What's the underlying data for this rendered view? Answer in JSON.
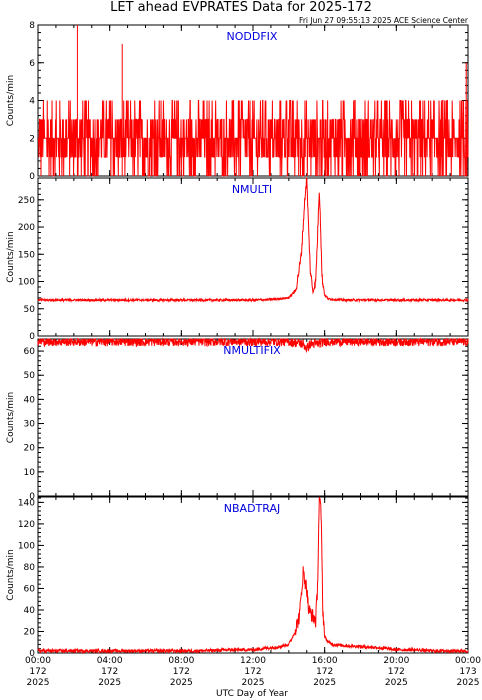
{
  "header": {
    "title": "LET ahead EVPRATES Data for 2025-172",
    "timestamp": "Fri Jun 27 09:55:13 2025 ACE Science Center"
  },
  "colors": {
    "trace": "#ff0000",
    "panel_title": "#0000dd",
    "axes": "#000000"
  },
  "chart_data": [
    {
      "type": "line",
      "title": "NODDFIX",
      "ylabel": "Counts/min",
      "ylim": [
        0,
        8
      ],
      "yticks": [
        0,
        2,
        4,
        6,
        8
      ],
      "series": [
        {
          "values_description": "noisy",
          "baseline": 2,
          "x_hours": [
            0,
            1,
            2,
            3,
            4,
            5,
            6,
            7,
            8,
            9,
            10,
            11,
            12,
            13,
            14,
            15,
            16,
            17,
            18,
            19,
            20,
            21,
            22,
            23,
            24
          ],
          "values": [
            2,
            1,
            2,
            2,
            1,
            2,
            2,
            1,
            2,
            2,
            2,
            1,
            2,
            2,
            2,
            2,
            2,
            2,
            1,
            2,
            2,
            2,
            1,
            2,
            2
          ],
          "spikes": [
            [
              2.2,
              8
            ],
            [
              4.7,
              7
            ],
            [
              23.9,
              6
            ]
          ]
        }
      ]
    },
    {
      "type": "line",
      "title": "NMULTI",
      "ylabel": "Counts/min",
      "ylim": [
        0,
        290
      ],
      "yticks": [
        0,
        50,
        100,
        150,
        200,
        250
      ],
      "series": [
        {
          "x_hours": [
            0,
            2,
            4,
            6,
            8,
            10,
            12,
            13,
            14,
            14.4,
            14.7,
            14.9,
            15.0,
            15.1,
            15.2,
            15.35,
            15.5,
            15.6,
            15.7,
            15.75,
            15.85,
            16.0,
            16.2,
            17,
            18,
            20,
            22,
            24
          ],
          "values": [
            66,
            66,
            66,
            66,
            66,
            66,
            66,
            67,
            70,
            85,
            150,
            255,
            290,
            200,
            120,
            80,
            100,
            180,
            270,
            230,
            110,
            75,
            68,
            66,
            66,
            66,
            66,
            66
          ]
        }
      ]
    },
    {
      "type": "line",
      "title": "NMULTIFIX",
      "ylabel": "Counts/min",
      "ylim": [
        0,
        65
      ],
      "yticks": [
        0,
        10,
        20,
        30,
        40,
        50,
        60
      ],
      "series": [
        {
          "x_hours": [
            0,
            2,
            4,
            6,
            8,
            10,
            12,
            14,
            14.8,
            15.0,
            15.2,
            15.6,
            16,
            18,
            20,
            22,
            24
          ],
          "values": [
            64,
            64,
            64,
            64,
            64,
            64,
            64,
            64,
            63,
            61,
            63,
            63,
            64,
            64,
            64,
            64,
            64
          ]
        }
      ]
    },
    {
      "type": "line",
      "title": "NBADTRAJ",
      "ylabel": "Counts/min",
      "ylim": [
        0,
        145
      ],
      "yticks": [
        0,
        20,
        40,
        60,
        80,
        100,
        120,
        140
      ],
      "xlabel": "UTC Day of Year",
      "xtick_labels": [
        [
          "00:00",
          "172",
          "2025"
        ],
        [
          "04:00",
          "172",
          "2025"
        ],
        [
          "08:00",
          "172",
          "2025"
        ],
        [
          "12:00",
          "172",
          "2025"
        ],
        [
          "16:00",
          "172",
          "2025"
        ],
        [
          "20:00",
          "172",
          "2025"
        ],
        [
          "00:00",
          "173",
          "2025"
        ]
      ],
      "xticks_hours": [
        0,
        4,
        8,
        12,
        16,
        20,
        24
      ],
      "series": [
        {
          "x_hours": [
            0,
            3,
            6,
            9,
            11,
            12,
            13,
            13.5,
            14,
            14.3,
            14.6,
            14.8,
            15.0,
            15.1,
            15.3,
            15.5,
            15.6,
            15.7,
            15.8,
            15.9,
            16.0,
            16.2,
            16.5,
            17,
            18,
            19,
            20,
            21,
            22,
            24
          ],
          "values": [
            2,
            2,
            2,
            2,
            3,
            3,
            5,
            6,
            8,
            18,
            35,
            75,
            60,
            40,
            35,
            30,
            60,
            145,
            130,
            40,
            15,
            10,
            8,
            7,
            6,
            5,
            3,
            3,
            2,
            2
          ]
        }
      ]
    }
  ]
}
